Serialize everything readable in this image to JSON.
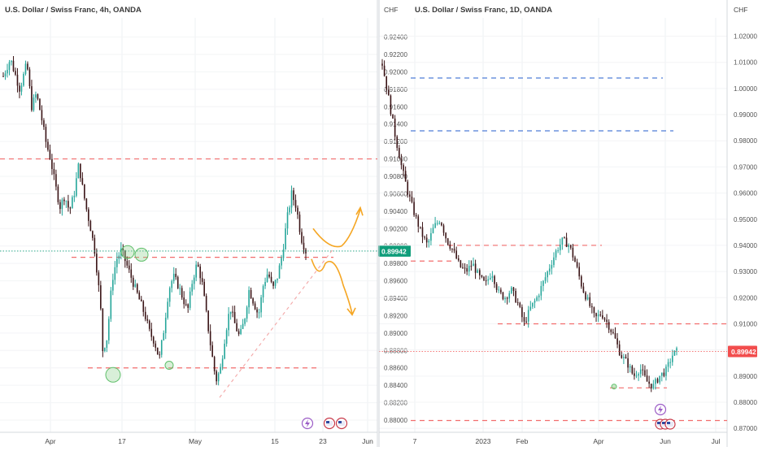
{
  "chart_data": [
    {
      "type": "candlestick",
      "title": "U.S. Dollar / Swiss Franc, 4h, OANDA",
      "currency_label": "CHF",
      "ylim": [
        0.8786,
        0.9262
      ],
      "y_ticks": [
        "0.92400",
        "0.92200",
        "0.92000",
        "0.91800",
        "0.91600",
        "0.91400",
        "0.91200",
        "0.91000",
        "0.90800",
        "0.90600",
        "0.90400",
        "0.90200",
        "0.90000",
        "0.89800",
        "0.89600",
        "0.89400",
        "0.89200",
        "0.89000",
        "0.88800",
        "0.88600",
        "0.88400",
        "0.88200",
        "0.88000"
      ],
      "x_ticks": [
        "Apr",
        "17",
        "May",
        "15",
        "23",
        "Jun"
      ],
      "last_price": "0.89942",
      "last_price_value": 0.89942,
      "horizontal_levels": [
        0.91,
        0.8987,
        0.886
      ],
      "price_path": [
        [
          0,
          0.9195
        ],
        [
          3,
          0.9215
        ],
        [
          7,
          0.918
        ],
        [
          10,
          0.921
        ],
        [
          12,
          0.916
        ],
        [
          14,
          0.9175
        ],
        [
          16,
          0.915
        ],
        [
          18,
          0.912
        ],
        [
          20,
          0.91
        ],
        [
          22,
          0.907
        ],
        [
          24,
          0.9045
        ],
        [
          26,
          0.9058
        ],
        [
          28,
          0.904
        ],
        [
          30,
          0.906
        ],
        [
          32,
          0.9095
        ],
        [
          33,
          0.9075
        ],
        [
          35,
          0.9045
        ],
        [
          37,
          0.902
        ],
        [
          39,
          0.899
        ],
        [
          40,
          0.896
        ],
        [
          41,
          0.894
        ],
        [
          42,
          0.888
        ],
        [
          44,
          0.8895
        ],
        [
          46,
          0.896
        ],
        [
          48,
          0.8985
        ],
        [
          50,
          0.8995
        ],
        [
          52,
          0.898
        ],
        [
          54,
          0.8965
        ],
        [
          56,
          0.895
        ],
        [
          58,
          0.8935
        ],
        [
          60,
          0.892
        ],
        [
          62,
          0.89
        ],
        [
          64,
          0.889
        ],
        [
          66,
          0.887
        ],
        [
          68,
          0.8905
        ],
        [
          70,
          0.895
        ],
        [
          72,
          0.8965
        ],
        [
          74,
          0.8955
        ],
        [
          76,
          0.894
        ],
        [
          78,
          0.8925
        ],
        [
          80,
          0.896
        ],
        [
          82,
          0.898
        ],
        [
          84,
          0.896
        ],
        [
          86,
          0.892
        ],
        [
          88,
          0.888
        ],
        [
          90,
          0.8845
        ],
        [
          92,
          0.886
        ],
        [
          94,
          0.89
        ],
        [
          96,
          0.893
        ],
        [
          98,
          0.891
        ],
        [
          100,
          0.8895
        ],
        [
          102,
          0.8915
        ],
        [
          104,
          0.895
        ],
        [
          106,
          0.8935
        ],
        [
          108,
          0.892
        ],
        [
          110,
          0.8955
        ],
        [
          112,
          0.897
        ],
        [
          114,
          0.895
        ],
        [
          116,
          0.8965
        ],
        [
          118,
          0.899
        ],
        [
          120,
          0.903
        ],
        [
          122,
          0.906
        ],
        [
          124,
          0.9045
        ],
        [
          126,
          0.901
        ],
        [
          128,
          0.8994
        ]
      ],
      "projection": "Two hand-drawn arrows from the last candle: one up toward 0.9045, one down toward 0.8925"
    },
    {
      "type": "candlestick",
      "title": "U.S. Dollar / Swiss Franc, 1D, OANDA",
      "currency_label": "CHF",
      "ylim": [
        0.8685,
        1.027
      ],
      "y_ticks": [
        "1.02000",
        "1.01000",
        "1.00000",
        "0.99000",
        "0.98000",
        "0.97000",
        "0.96000",
        "0.95000",
        "0.94000",
        "0.93000",
        "0.92000",
        "0.91000",
        "0.90000",
        "0.89000",
        "0.88000",
        "0.87000"
      ],
      "x_ticks": [
        "7",
        "2023",
        "Feb",
        "Apr",
        "Jun",
        "Jul"
      ],
      "last_price": "0.89942",
      "last_price_value": 0.89942,
      "horizontal_levels": [
        1.004,
        0.9838,
        0.94,
        0.934,
        0.91,
        0.8855,
        0.873
      ],
      "price_path": [
        [
          0,
          1.0095
        ],
        [
          3,
          0.996
        ],
        [
          6,
          0.982
        ],
        [
          9,
          0.97
        ],
        [
          12,
          0.96
        ],
        [
          15,
          0.952
        ],
        [
          18,
          0.945
        ],
        [
          21,
          0.94
        ],
        [
          24,
          0.947
        ],
        [
          27,
          0.95
        ],
        [
          30,
          0.942
        ],
        [
          33,
          0.938
        ],
        [
          36,
          0.932
        ],
        [
          39,
          0.93
        ],
        [
          42,
          0.933
        ],
        [
          45,
          0.928
        ],
        [
          48,
          0.925
        ],
        [
          51,
          0.93
        ],
        [
          54,
          0.922
        ],
        [
          57,
          0.92
        ],
        [
          60,
          0.923
        ],
        [
          63,
          0.918
        ],
        [
          66,
          0.91
        ],
        [
          69,
          0.916
        ],
        [
          72,
          0.92
        ],
        [
          75,
          0.926
        ],
        [
          78,
          0.932
        ],
        [
          81,
          0.938
        ],
        [
          84,
          0.942
        ],
        [
          87,
          0.94
        ],
        [
          90,
          0.933
        ],
        [
          93,
          0.924
        ],
        [
          96,
          0.918
        ],
        [
          99,
          0.912
        ],
        [
          102,
          0.914
        ],
        [
          105,
          0.91
        ],
        [
          108,
          0.905
        ],
        [
          111,
          0.898
        ],
        [
          114,
          0.895
        ],
        [
          117,
          0.89
        ],
        [
          120,
          0.893
        ],
        [
          123,
          0.888
        ],
        [
          126,
          0.886
        ],
        [
          129,
          0.89
        ],
        [
          132,
          0.892
        ],
        [
          135,
          0.898
        ],
        [
          137,
          0.8994
        ]
      ],
      "circle_marker": 0.886
    }
  ],
  "colors": {
    "up": "#26a69a",
    "down": "#3a1416",
    "level_red": "#f26d6d",
    "level_blue": "#4f7dd8",
    "price_tag": "#0f9d7a",
    "price_tag_red": "#f24d4d",
    "arrow": "#f5a623",
    "trend": "#f3a6a6",
    "circle": "#8fd18f"
  },
  "icons": {
    "event_lightning": "lightning-icon",
    "event_us": "us-flag-icon"
  }
}
